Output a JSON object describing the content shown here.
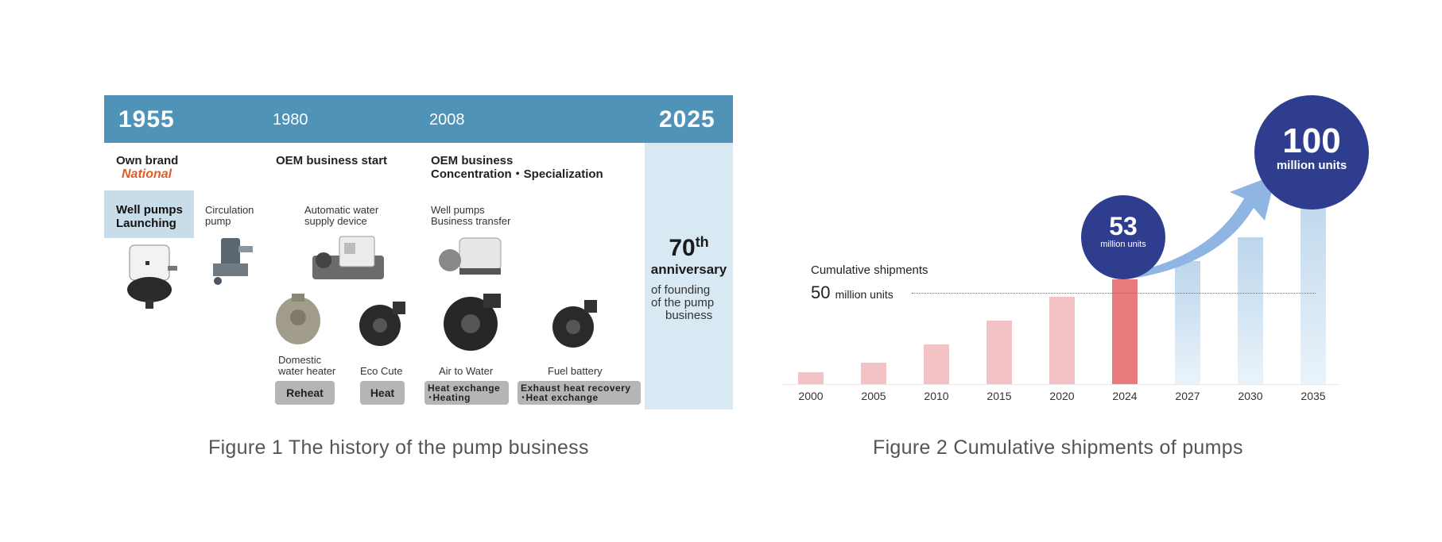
{
  "figure1": {
    "years": [
      "1955",
      "1980",
      "2008",
      "2025"
    ],
    "own_brand": "Own brand",
    "brand_name": "National",
    "oem_start": "OEM business start",
    "oem_concentration": [
      "OEM business",
      "Concentration・Specialization"
    ],
    "well_pumps_launch": [
      "Well pumps",
      "Launching"
    ],
    "circulation_pump": [
      "Circulation",
      "pump"
    ],
    "automatic_water": [
      "Automatic water",
      "supply device"
    ],
    "well_transfer": [
      "Well pumps",
      "Business transfer"
    ],
    "domestic_heater": [
      "Domestic",
      "water heater"
    ],
    "eco_cute": "Eco Cute",
    "air_to_water": "Air to Water",
    "fuel_battery": "Fuel battery",
    "tags": {
      "reheat": "Reheat",
      "heat": "Heat",
      "heat_exchange": [
        "Heat exchange",
        "･Heating"
      ],
      "exhaust": [
        "Exhaust heat recovery",
        "･Heat exchange"
      ]
    },
    "anniversary": {
      "number": "70",
      "suffix": "th",
      "word": "anniversary",
      "lines": [
        "of founding",
        "of the pump",
        "business"
      ]
    },
    "caption": "Figure 1 The history of the pump business"
  },
  "figure2": {
    "cumulative_label": "Cumulative shipments",
    "reference_value": "50",
    "reference_unit": "million units",
    "bubble_53": {
      "value": "53",
      "unit": "million units"
    },
    "bubble_100": {
      "value": "100",
      "unit": "million units"
    },
    "caption": "Figure 2 Cumulative shipments of pumps",
    "colors": {
      "actual": "#f2c2c4",
      "current": "#e8797c",
      "forecast": "#bcd6ec",
      "bubble": "#2f3d8f",
      "arrow": "#8fb6e2"
    }
  },
  "chart_data": {
    "type": "bar",
    "categories": [
      "2000",
      "2005",
      "2010",
      "2015",
      "2020",
      "2024",
      "2027",
      "2030",
      "2035"
    ],
    "values": [
      6,
      11,
      20,
      32,
      44,
      53,
      62,
      74,
      100
    ],
    "series_kind": [
      "actual",
      "actual",
      "actual",
      "actual",
      "actual",
      "current",
      "forecast",
      "forecast",
      "forecast"
    ],
    "title": "Cumulative shipments",
    "ylabel": "",
    "ylim": [
      0,
      100
    ],
    "annotations": [
      "50 million units",
      "53 million units",
      "100 million units"
    ]
  }
}
